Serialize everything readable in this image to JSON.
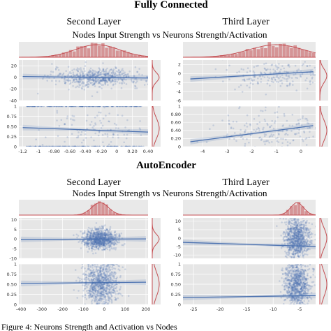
{
  "sections": [
    {
      "title": "Fully Connected",
      "subtitle": "Nodes Input Strength vs Neurons Strength/Activation",
      "layers": [
        {
          "label": "Second Layer"
        },
        {
          "label": "Third Layer"
        }
      ]
    },
    {
      "title": "AutoEncoder",
      "subtitle": "Nodes Input Strength vs Neurons Strength/Activation",
      "layers": [
        {
          "label": "Second Layer"
        },
        {
          "label": "Third Layer"
        }
      ]
    }
  ],
  "caption_fragment": "Figure 4: Neurons Strength and Activation vs Nodes",
  "colors": {
    "points": "#4c72b0",
    "marginal": "#c44e52",
    "panel_bg": "#e6e6e6"
  },
  "chart_data": [
    {
      "type": "scatter",
      "section": "Fully Connected",
      "layer": "Second Layer",
      "panel": "strength",
      "xlim": [
        -1.25,
        0.4
      ],
      "ylim": [
        -40,
        30
      ],
      "xticks": [
        -1.2,
        -1.0,
        -0.8,
        -0.6,
        -0.4,
        -0.2,
        0.0,
        0.2,
        0.4
      ],
      "yticks": [
        20,
        0,
        -20,
        -40
      ],
      "cloud": {
        "x_center": -0.25,
        "x_spread": 0.28,
        "y_center": 0,
        "y_spread": 8,
        "count": 600
      },
      "regression": {
        "x": [
          -1.2,
          0.4
        ],
        "y": [
          1.5,
          -1.0
        ]
      }
    },
    {
      "type": "scatter",
      "section": "Fully Connected",
      "layer": "Second Layer",
      "panel": "activation",
      "xlim": [
        -1.25,
        0.4
      ],
      "ylim": [
        0,
        1.0
      ],
      "xticks": [
        -1.2,
        -1.0,
        -0.8,
        -0.6,
        -0.4,
        -0.2,
        0.0,
        0.2,
        0.4
      ],
      "yticks": [
        1.0,
        0.75,
        0.5,
        0.25,
        0.0
      ],
      "bands": [
        0,
        1.0
      ],
      "cloud": {
        "x_center": -0.3,
        "x_spread": 0.3,
        "y_center": 0.45,
        "y_spread": 0.25,
        "count": 120
      },
      "regression": {
        "x": [
          -1.2,
          0.4
        ],
        "y": [
          0.47,
          0.36
        ]
      }
    },
    {
      "type": "scatter",
      "section": "Fully Connected",
      "layer": "Third Layer",
      "panel": "strength",
      "xlim": [
        -4.8,
        0.6
      ],
      "ylim": [
        -6,
        3
      ],
      "xticks": [
        -4,
        -3,
        -2,
        -1,
        0
      ],
      "yticks": [
        2,
        0,
        -2,
        -4,
        -6
      ],
      "cloud": {
        "x_center": -1.0,
        "x_spread": 1.1,
        "y_center": -0.5,
        "y_spread": 1.5,
        "count": 200
      },
      "regression": {
        "x": [
          -4.5,
          0.5
        ],
        "y": [
          -1.2,
          0.4
        ]
      }
    },
    {
      "type": "scatter",
      "section": "Fully Connected",
      "layer": "Third Layer",
      "panel": "activation",
      "xlim": [
        -4.8,
        0.6
      ],
      "ylim": [
        0,
        1.0
      ],
      "xticks": [
        -4,
        -3,
        -2,
        -1,
        0
      ],
      "yticks": [
        1.0,
        0.8,
        0.6,
        0.4,
        0.2,
        0.0
      ],
      "cloud": {
        "x_center": -1.0,
        "x_spread": 1.1,
        "y_center": 0.4,
        "y_spread": 0.25,
        "count": 200
      },
      "regression": {
        "x": [
          -4.5,
          0.5
        ],
        "y": [
          0.12,
          0.52
        ]
      }
    },
    {
      "type": "scatter",
      "section": "AutoEncoder",
      "layer": "Second Layer",
      "panel": "strength",
      "xlim": [
        -410,
        210
      ],
      "ylim": [
        -10,
        11
      ],
      "xticks": [
        -400,
        -300,
        -200,
        -100,
        0,
        100,
        200
      ],
      "yticks": [
        10,
        5,
        0,
        -5,
        -10
      ],
      "cloud": {
        "x_center": -20,
        "x_spread": 40,
        "y_center": 0,
        "y_spread": 2.5,
        "count": 900
      },
      "regression": {
        "x": [
          -400,
          200
        ],
        "y": [
          -0.2,
          0.1
        ]
      }
    },
    {
      "type": "scatter",
      "section": "AutoEncoder",
      "layer": "Second Layer",
      "panel": "activation",
      "xlim": [
        -410,
        210
      ],
      "ylim": [
        0,
        1.0
      ],
      "xticks": [
        -400,
        -300,
        -200,
        -100,
        0,
        100,
        200
      ],
      "yticks": [
        1.0,
        0.75,
        0.5,
        0.25,
        0.0
      ],
      "cloud": {
        "x_center": -20,
        "x_spread": 40,
        "y_center": 0.5,
        "y_spread": 0.3,
        "count": 900
      },
      "regression": {
        "x": [
          -400,
          200
        ],
        "y": [
          0.52,
          0.55
        ]
      }
    },
    {
      "type": "scatter",
      "section": "AutoEncoder",
      "layer": "Third Layer",
      "panel": "strength",
      "xlim": [
        -27,
        -2
      ],
      "ylim": [
        -12,
        12
      ],
      "xticks": [
        -25,
        -20,
        -15,
        -10,
        -5
      ],
      "yticks": [
        10,
        5,
        0,
        -5,
        -10
      ],
      "cloud": {
        "x_center": -5.5,
        "x_spread": 1.2,
        "y_center": 0,
        "y_spread": 6,
        "count": 900
      },
      "regression": {
        "x": [
          -27,
          -2
        ],
        "y": [
          -2.5,
          -5.0
        ]
      }
    },
    {
      "type": "scatter",
      "section": "AutoEncoder",
      "layer": "Third Layer",
      "panel": "activation",
      "xlim": [
        -27,
        -2
      ],
      "ylim": [
        0,
        1.0
      ],
      "xticks": [
        -25,
        -20,
        -15,
        -10,
        -5
      ],
      "yticks": [
        1.0,
        0.75,
        0.5,
        0.25,
        0.0
      ],
      "cloud": {
        "x_center": -5.5,
        "x_spread": 1.2,
        "y_center": 0.5,
        "y_spread": 0.3,
        "count": 900
      },
      "regression": {
        "x": [
          -27,
          -2
        ],
        "y": [
          0.17,
          0.22
        ]
      }
    }
  ]
}
